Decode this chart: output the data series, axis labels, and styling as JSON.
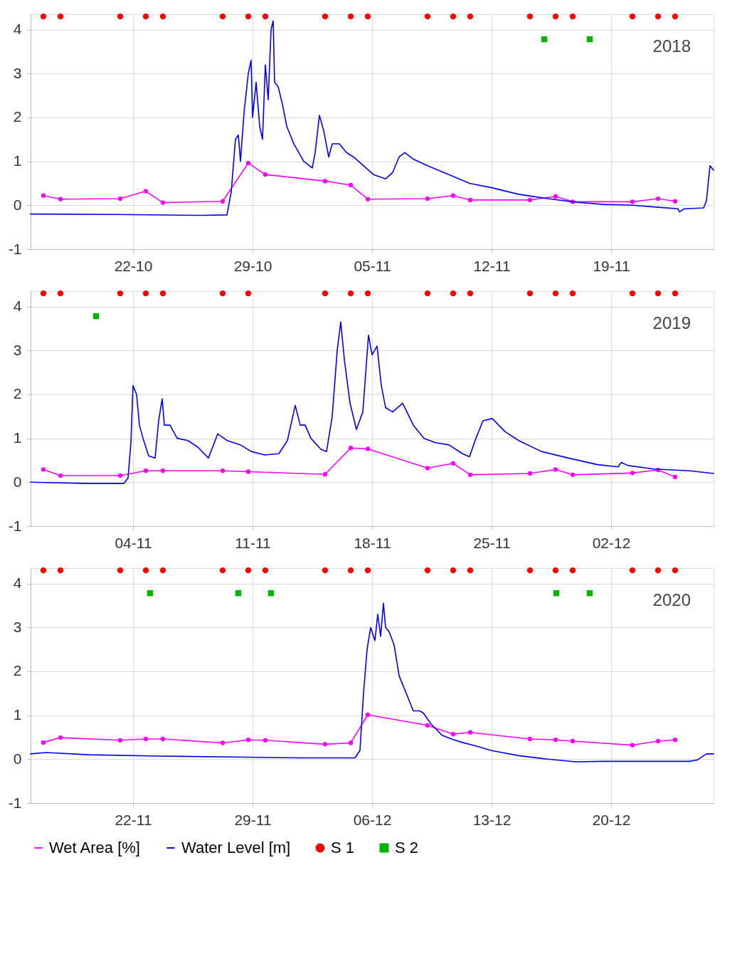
{
  "chart_data": [
    {
      "type": "line",
      "xlim": [
        "2018-10-16",
        "2018-11-25"
      ],
      "ylim": [
        -1,
        4.35
      ],
      "yticks": [
        -1,
        0,
        1,
        2,
        3,
        4
      ],
      "grid": true,
      "annotations": [
        "2018"
      ],
      "xticks": [
        {
          "value": "2018-10-22",
          "label": "22-10"
        },
        {
          "value": "2018-10-29",
          "label": "29-10"
        },
        {
          "value": "2018-11-05",
          "label": "05-11"
        },
        {
          "value": "2018-11-12",
          "label": "12-11"
        },
        {
          "value": "2018-11-19",
          "label": "19-11"
        }
      ],
      "series": [
        {
          "type": "line",
          "marker": "circle",
          "color": "#ff00ff",
          "x": [
            "2018-10-16T18:00",
            "2018-10-17T18:00",
            "2018-10-21T06:00",
            "2018-10-22T18:00",
            "2018-10-23T18:00",
            "2018-10-27T06:00",
            "2018-10-28T18:00",
            "2018-10-29T18:00",
            "2018-11-02T06:00",
            "2018-11-03T18:00",
            "2018-11-04T18:00",
            "2018-11-08T06:00",
            "2018-11-09T18:00",
            "2018-11-10T18:00",
            "2018-11-14T06:00",
            "2018-11-15T18:00",
            "2018-11-16T18:00",
            "2018-11-20T06:00",
            "2018-11-21T18:00",
            "2018-11-22T18:00"
          ],
          "values": [
            0.22,
            0.14,
            0.15,
            0.32,
            0.06,
            0.09,
            0.96,
            0.7,
            0.55,
            0.46,
            0.14,
            0.15,
            0.22,
            0.12,
            0.12,
            0.2,
            0.08,
            0.08,
            0.15,
            0.09
          ]
        },
        {
          "type": "line",
          "color": "#0000ee",
          "x": [
            "2018-10-16T00:00",
            "2018-10-21T00:00",
            "2018-10-26T00:00",
            "2018-10-27T12:00",
            "2018-10-27T18:00",
            "2018-10-28T00:00",
            "2018-10-28T04:00",
            "2018-10-28T07:00",
            "2018-10-28T12:00",
            "2018-10-28T18:00",
            "2018-10-28T22:00",
            "2018-10-29T00:00",
            "2018-10-29T05:00",
            "2018-10-29T10:00",
            "2018-10-29T14:00",
            "2018-10-29T18:00",
            "2018-10-29T22:00",
            "2018-10-30T02:00",
            "2018-10-30T05:00",
            "2018-10-30T07:00",
            "2018-10-30T12:00",
            "2018-10-30T18:00",
            "2018-10-31T00:00",
            "2018-10-31T10:00",
            "2018-11-01T00:00",
            "2018-11-01T12:00",
            "2018-11-01T16:00",
            "2018-11-01T22:00",
            "2018-11-02T04:00",
            "2018-11-02T11:00",
            "2018-11-02T16:00",
            "2018-11-03T02:00",
            "2018-11-03T12:00",
            "2018-11-03T22:00",
            "2018-11-04T12:00",
            "2018-11-05T02:00",
            "2018-11-05T19:00",
            "2018-11-06T05:00",
            "2018-11-06T14:00",
            "2018-11-06T22:00",
            "2018-11-07T10:00",
            "2018-11-08T06:00",
            "2018-11-09T12:00",
            "2018-11-10T17:00",
            "2018-11-12T00:00",
            "2018-11-13T14:00",
            "2018-11-15T07:00",
            "2018-11-16T22:00",
            "2018-11-18T14:00",
            "2018-11-20T06:00",
            "2018-11-21T22:00",
            "2018-11-22T22:00",
            "2018-11-23T00:00",
            "2018-11-23T07:00",
            "2018-11-24T10:00",
            "2018-11-24T14:00",
            "2018-11-24T19:00",
            "2018-11-25T00:00"
          ],
          "values": [
            -0.2,
            -0.21,
            -0.23,
            -0.22,
            0.3,
            1.5,
            1.6,
            1.0,
            2.1,
            3.0,
            3.3,
            2.0,
            2.8,
            1.8,
            1.5,
            3.2,
            2.4,
            4.0,
            4.2,
            2.8,
            2.7,
            2.3,
            1.8,
            1.4,
            1.0,
            0.85,
            1.2,
            2.05,
            1.7,
            1.1,
            1.4,
            1.4,
            1.2,
            1.1,
            0.9,
            0.7,
            0.6,
            0.75,
            1.1,
            1.2,
            1.05,
            0.9,
            0.7,
            0.5,
            0.4,
            0.25,
            0.15,
            0.07,
            0.02,
            0.0,
            -0.05,
            -0.08,
            -0.15,
            -0.08,
            -0.06,
            0.1,
            0.9,
            0.8
          ]
        },
        {
          "type": "scatter",
          "marker": "circle",
          "color": "#ff0000",
          "x": [
            "2018-10-16T18:00",
            "2018-10-17T18:00",
            "2018-10-21T06:00",
            "2018-10-22T18:00",
            "2018-10-23T18:00",
            "2018-10-27T06:00",
            "2018-10-28T18:00",
            "2018-10-29T18:00",
            "2018-11-02T06:00",
            "2018-11-03T18:00",
            "2018-11-04T18:00",
            "2018-11-08T06:00",
            "2018-11-09T18:00",
            "2018-11-10T18:00",
            "2018-11-14T06:00",
            "2018-11-15T18:00",
            "2018-11-16T18:00",
            "2018-11-20T06:00",
            "2018-11-21T18:00",
            "2018-11-22T18:00"
          ],
          "values": [
            4.3,
            4.3,
            4.3,
            4.3,
            4.3,
            4.3,
            4.3,
            4.3,
            4.3,
            4.3,
            4.3,
            4.3,
            4.3,
            4.3,
            4.3,
            4.3,
            4.3,
            4.3,
            4.3,
            4.3
          ]
        },
        {
          "type": "scatter",
          "marker": "square",
          "color": "#00b400",
          "x": [
            "2018-11-15T02:00",
            "2018-11-17T18:00"
          ],
          "values": [
            3.78,
            3.78
          ]
        }
      ]
    },
    {
      "type": "line",
      "xlim": [
        "2019-10-29",
        "2019-12-08"
      ],
      "ylim": [
        -1,
        4.35
      ],
      "yticks": [
        -1,
        0,
        1,
        2,
        3,
        4
      ],
      "grid": true,
      "annotations": [
        "2019"
      ],
      "xticks": [
        {
          "value": "2019-11-04",
          "label": "04-11"
        },
        {
          "value": "2019-11-11",
          "label": "11-11"
        },
        {
          "value": "2019-11-18",
          "label": "18-11"
        },
        {
          "value": "2019-11-25",
          "label": "25-11"
        },
        {
          "value": "2019-12-02",
          "label": "02-12"
        }
      ],
      "series": [
        {
          "type": "line",
          "marker": "circle",
          "color": "#ff00ff",
          "x": [
            "2019-10-29T18:00",
            "2019-10-30T18:00",
            "2019-11-03T06:00",
            "2019-11-04T18:00",
            "2019-11-05T18:00",
            "2019-11-09T06:00",
            "2019-11-10T18:00",
            "2019-11-15T06:00",
            "2019-11-16T18:00",
            "2019-11-17T18:00",
            "2019-11-21T06:00",
            "2019-11-22T18:00",
            "2019-11-23T18:00",
            "2019-11-27T06:00",
            "2019-11-28T18:00",
            "2019-11-29T18:00",
            "2019-12-03T06:00",
            "2019-12-04T18:00",
            "2019-12-05T18:00"
          ],
          "values": [
            0.29,
            0.15,
            0.15,
            0.26,
            0.26,
            0.26,
            0.24,
            0.18,
            0.78,
            0.76,
            0.32,
            0.43,
            0.17,
            0.2,
            0.29,
            0.17,
            0.21,
            0.28,
            0.12
          ]
        },
        {
          "type": "line",
          "color": "#0000ee",
          "x": [
            "2019-10-29T00:00",
            "2019-11-01T10:00",
            "2019-11-03T11:00",
            "2019-11-03T17:00",
            "2019-11-03T21:00",
            "2019-11-04T00:00",
            "2019-11-04T05:00",
            "2019-11-04T09:00",
            "2019-11-04T14:00",
            "2019-11-04T22:00",
            "2019-11-05T07:00",
            "2019-11-05T12:00",
            "2019-11-05T17:00",
            "2019-11-05T20:00",
            "2019-11-06T04:00",
            "2019-11-06T14:00",
            "2019-11-07T05:00",
            "2019-11-07T19:00",
            "2019-11-08T10:00",
            "2019-11-08T23:00",
            "2019-11-09T12:00",
            "2019-11-10T07:00",
            "2019-11-10T22:00",
            "2019-11-11T17:00",
            "2019-11-12T13:00",
            "2019-11-13T01:00",
            "2019-11-13T12:00",
            "2019-11-13T19:00",
            "2019-11-14T02:00",
            "2019-11-14T10:00",
            "2019-11-15T00:00",
            "2019-11-15T08:00",
            "2019-11-15T16:00",
            "2019-11-15T23:00",
            "2019-11-16T04:00",
            "2019-11-16T09:00",
            "2019-11-16T17:00",
            "2019-11-17T02:00",
            "2019-11-17T11:00",
            "2019-11-17T19:00",
            "2019-11-18T00:00",
            "2019-11-18T07:00",
            "2019-11-18T13:00",
            "2019-11-18T19:00",
            "2019-11-19T05:00",
            "2019-11-19T19:00",
            "2019-11-20T10:00",
            "2019-11-21T01:00",
            "2019-11-21T17:00",
            "2019-11-22T12:00",
            "2019-11-23T07:00",
            "2019-11-23T17:00",
            "2019-11-24T02:00",
            "2019-11-24T12:00",
            "2019-11-25T01:00",
            "2019-11-25T19:00",
            "2019-11-26T14:00",
            "2019-11-27T22:00",
            "2019-11-29T12:00",
            "2019-12-01T05:00",
            "2019-12-02T10:00",
            "2019-12-02T14:00",
            "2019-12-03T00:00",
            "2019-12-04T12:00",
            "2019-12-06T14:00",
            "2019-12-08T00:00"
          ],
          "values": [
            0.0,
            -0.03,
            -0.03,
            0.1,
            0.9,
            2.2,
            2.0,
            1.3,
            1.0,
            0.6,
            0.55,
            1.4,
            1.9,
            1.3,
            1.3,
            1.0,
            0.95,
            0.8,
            0.55,
            1.1,
            0.95,
            0.85,
            0.7,
            0.62,
            0.65,
            0.95,
            1.75,
            1.3,
            1.3,
            1.0,
            0.75,
            0.7,
            1.5,
            3.0,
            3.65,
            2.8,
            1.8,
            1.2,
            1.6,
            3.35,
            2.9,
            3.1,
            2.2,
            1.7,
            1.6,
            1.8,
            1.3,
            1.0,
            0.9,
            0.85,
            0.65,
            0.58,
            1.0,
            1.4,
            1.45,
            1.15,
            0.95,
            0.7,
            0.55,
            0.4,
            0.35,
            0.45,
            0.38,
            0.3,
            0.26,
            0.2
          ]
        },
        {
          "type": "scatter",
          "marker": "circle",
          "color": "#ff0000",
          "x": [
            "2019-10-29T18:00",
            "2019-10-30T18:00",
            "2019-11-03T06:00",
            "2019-11-04T18:00",
            "2019-11-05T18:00",
            "2019-11-09T06:00",
            "2019-11-10T18:00",
            "2019-11-15T06:00",
            "2019-11-16T18:00",
            "2019-11-17T18:00",
            "2019-11-21T06:00",
            "2019-11-22T18:00",
            "2019-11-23T18:00",
            "2019-11-27T06:00",
            "2019-11-28T18:00",
            "2019-11-29T18:00",
            "2019-12-03T06:00",
            "2019-12-04T18:00",
            "2019-12-05T18:00"
          ],
          "values": [
            4.3,
            4.3,
            4.3,
            4.3,
            4.3,
            4.3,
            4.3,
            4.3,
            4.3,
            4.3,
            4.3,
            4.3,
            4.3,
            4.3,
            4.3,
            4.3,
            4.3,
            4.3,
            4.3
          ]
        },
        {
          "type": "scatter",
          "marker": "square",
          "color": "#00b400",
          "x": [
            "2019-11-01T20:00"
          ],
          "values": [
            3.78
          ]
        }
      ]
    },
    {
      "type": "line",
      "xlim": [
        "2020-11-16",
        "2020-12-26"
      ],
      "ylim": [
        -1,
        4.35
      ],
      "yticks": [
        -1,
        0,
        1,
        2,
        3,
        4
      ],
      "grid": true,
      "legend": "bottom",
      "annotations": [
        "2020"
      ],
      "xticks": [
        {
          "value": "2020-11-22",
          "label": "22-11"
        },
        {
          "value": "2020-11-29",
          "label": "29-11"
        },
        {
          "value": "2020-12-06",
          "label": "06-12"
        },
        {
          "value": "2020-12-13",
          "label": "13-12"
        },
        {
          "value": "2020-12-20",
          "label": "20-12"
        }
      ],
      "series": [
        {
          "name": "Wet Area [%]",
          "type": "line",
          "marker": "circle",
          "color": "#ff00ff",
          "x": [
            "2020-11-16T18:00",
            "2020-11-17T18:00",
            "2020-11-21T06:00",
            "2020-11-22T18:00",
            "2020-11-23T18:00",
            "2020-11-27T06:00",
            "2020-11-28T18:00",
            "2020-11-29T18:00",
            "2020-12-03T06:00",
            "2020-12-04T18:00",
            "2020-12-05T18:00",
            "2020-12-09T06:00",
            "2020-12-10T18:00",
            "2020-12-11T18:00",
            "2020-12-15T06:00",
            "2020-12-16T18:00",
            "2020-12-17T18:00",
            "2020-12-21T06:00",
            "2020-12-22T18:00",
            "2020-12-23T18:00"
          ],
          "values": [
            0.38,
            0.49,
            0.43,
            0.46,
            0.46,
            0.37,
            0.44,
            0.43,
            0.34,
            0.37,
            1.01,
            0.77,
            0.57,
            0.61,
            0.46,
            0.44,
            0.41,
            0.32,
            0.41,
            0.44
          ]
        },
        {
          "name": "Water Level [m]",
          "type": "line",
          "color": "#0000ee",
          "x": [
            "2020-11-16T00:00",
            "2020-11-16T22:00",
            "2020-11-19T10:00",
            "2020-11-23T13:00",
            "2020-11-27T17:00",
            "2020-12-01T19:00",
            "2020-12-05T00:00",
            "2020-12-05T07:00",
            "2020-12-05T12:00",
            "2020-12-05T17:00",
            "2020-12-05T22:00",
            "2020-12-06T04:00",
            "2020-12-06T08:00",
            "2020-12-06T12:00",
            "2020-12-06T16:00",
            "2020-12-06T19:00",
            "2020-12-07T00:00",
            "2020-12-07T07:00",
            "2020-12-07T14:00",
            "2020-12-08T00:00",
            "2020-12-08T10:00",
            "2020-12-08T19:00",
            "2020-12-09T00:00",
            "2020-12-09T11:00",
            "2020-12-10T02:00",
            "2020-12-10T17:00",
            "2020-12-11T07:00",
            "2020-12-12T02:00",
            "2020-12-12T23:00",
            "2020-12-14T14:00",
            "2020-12-16T07:00",
            "2020-12-17T22:00",
            "2020-12-19T14:00",
            "2020-12-22T02:00",
            "2020-12-24T14:00",
            "2020-12-25T01:00",
            "2020-12-25T14:00",
            "2020-12-26T00:00"
          ],
          "values": [
            0.12,
            0.15,
            0.1,
            0.07,
            0.05,
            0.03,
            0.03,
            0.2,
            1.5,
            2.5,
            3.0,
            2.7,
            3.3,
            2.8,
            3.55,
            3.0,
            2.9,
            2.6,
            1.9,
            1.5,
            1.1,
            1.1,
            1.05,
            0.8,
            0.55,
            0.45,
            0.38,
            0.3,
            0.2,
            0.08,
            0.0,
            -0.06,
            -0.05,
            -0.05,
            -0.05,
            -0.02,
            0.12,
            0.12
          ]
        },
        {
          "name": "S 1",
          "type": "scatter",
          "marker": "circle",
          "color": "#ff0000",
          "x": [
            "2020-11-16T18:00",
            "2020-11-17T18:00",
            "2020-11-21T06:00",
            "2020-11-22T18:00",
            "2020-11-23T18:00",
            "2020-11-27T06:00",
            "2020-11-28T18:00",
            "2020-11-29T18:00",
            "2020-12-03T06:00",
            "2020-12-04T18:00",
            "2020-12-05T18:00",
            "2020-12-09T06:00",
            "2020-12-10T18:00",
            "2020-12-11T18:00",
            "2020-12-15T06:00",
            "2020-12-16T18:00",
            "2020-12-17T18:00",
            "2020-12-21T06:00",
            "2020-12-22T18:00",
            "2020-12-23T18:00"
          ],
          "values": [
            4.3,
            4.3,
            4.3,
            4.3,
            4.3,
            4.3,
            4.3,
            4.3,
            4.3,
            4.3,
            4.3,
            4.3,
            4.3,
            4.3,
            4.3,
            4.3,
            4.3,
            4.3,
            4.3,
            4.3
          ]
        },
        {
          "name": "S 2",
          "type": "scatter",
          "marker": "square",
          "color": "#00b400",
          "x": [
            "2020-11-23T00:00",
            "2020-11-28T04:00",
            "2020-11-30T02:00",
            "2020-12-16T19:00",
            "2020-12-18T18:00"
          ],
          "values": [
            3.78,
            3.78,
            3.78,
            3.78,
            3.78
          ]
        }
      ]
    }
  ]
}
